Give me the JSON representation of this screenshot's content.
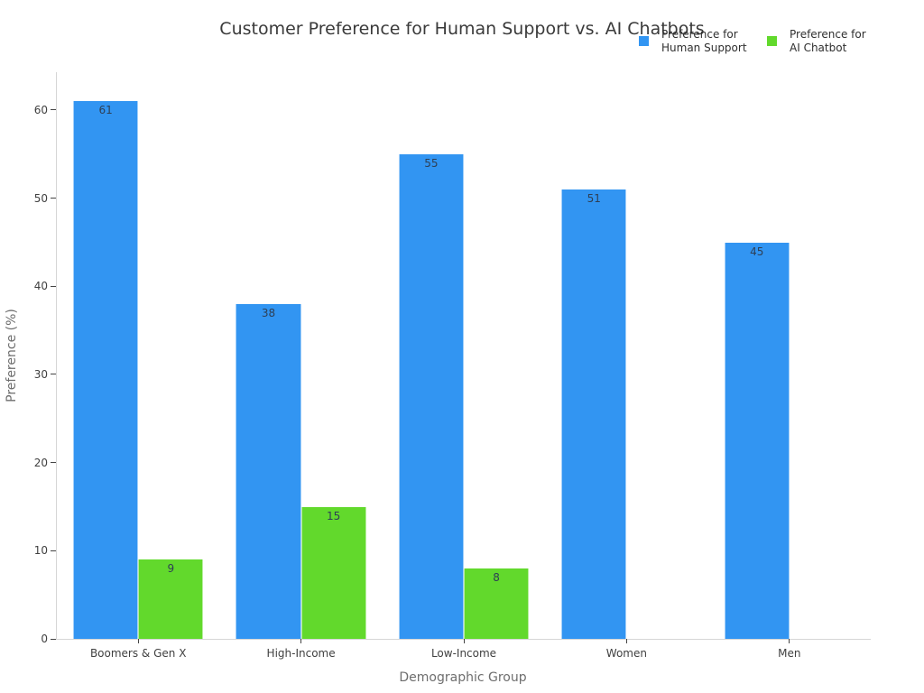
{
  "chart_data": {
    "type": "bar",
    "title": "Customer Preference for Human Support vs. AI Chatbots",
    "xlabel": "Demographic Group",
    "ylabel": "Preference (%)",
    "categories": [
      "Boomers & Gen X",
      "High-Income",
      "Low-Income",
      "Women",
      "Men"
    ],
    "series": [
      {
        "name": "Preference for Human Support",
        "legend_lines": [
          "Preference for",
          "Human Support"
        ],
        "color": "#3295F2",
        "values": [
          61,
          38,
          55,
          51,
          45
        ]
      },
      {
        "name": "Preference for AI Chatbot",
        "legend_lines": [
          "Preference for",
          "AI Chatbot"
        ],
        "color": "#62D92C",
        "values": [
          9,
          15,
          8,
          0,
          0
        ]
      }
    ],
    "yticks": [
      0,
      10,
      20,
      30,
      40,
      50,
      60
    ],
    "ylim": [
      0,
      64.3
    ],
    "grid": false,
    "legend_position": "top-right",
    "bar_value_labels": true,
    "bar_label_color": "#2e3f55",
    "axis_line_color": "#d6d6d6",
    "tick_label_color": "#404040",
    "axis_title_color": "#6e6e6e"
  }
}
